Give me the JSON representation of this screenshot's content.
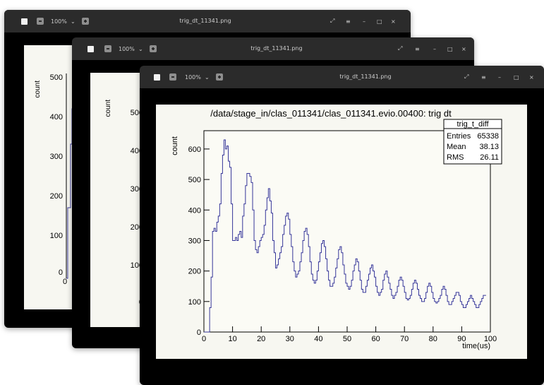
{
  "window": {
    "zoom": "100%",
    "filename": "trig_dt_11341.png",
    "icons": [
      "image-icon",
      "zoom-out-icon",
      "dropdown-chevron-icon",
      "zoom-in-icon",
      "fullscreen-icon",
      "menu-icon",
      "minimize-icon",
      "maximize-icon",
      "close-icon"
    ]
  },
  "chart_data": {
    "type": "histogram",
    "title": "/data/stage_in/clas_011341/clas_011341.evio.00400: trig dt",
    "xlabel": "time(us)",
    "ylabel": "count",
    "xlim": [
      0,
      100
    ],
    "ylim": [
      0,
      660
    ],
    "x_ticks": [
      0,
      10,
      20,
      30,
      40,
      50,
      60,
      70,
      80,
      90,
      100
    ],
    "y_ticks": [
      0,
      100,
      200,
      300,
      400,
      500,
      600
    ],
    "stats": {
      "name": "trig_t_diff",
      "rows": [
        {
          "label": "Entries",
          "value": "65338"
        },
        {
          "label": "Mean",
          "value": "38.13"
        },
        {
          "label": "RMS",
          "value": "26.11"
        }
      ]
    },
    "bin_width": 0.5,
    "values": [
      0,
      0,
      0,
      0,
      80,
      180,
      330,
      340,
      330,
      360,
      380,
      420,
      520,
      580,
      630,
      600,
      610,
      560,
      540,
      420,
      300,
      300,
      310,
      300,
      320,
      330,
      310,
      380,
      420,
      480,
      520,
      520,
      510,
      490,
      400,
      300,
      270,
      260,
      280,
      300,
      310,
      320,
      350,
      400,
      440,
      470,
      430,
      390,
      300,
      260,
      210,
      220,
      240,
      260,
      280,
      320,
      350,
      380,
      390,
      370,
      320,
      280,
      230,
      200,
      180,
      190,
      200,
      230,
      260,
      300,
      330,
      340,
      320,
      280,
      230,
      190,
      170,
      160,
      170,
      200,
      230,
      260,
      290,
      300,
      280,
      240,
      200,
      170,
      150,
      150,
      160,
      180,
      210,
      240,
      270,
      280,
      260,
      220,
      190,
      160,
      150,
      140,
      150,
      170,
      200,
      220,
      240,
      230,
      200,
      170,
      140,
      130,
      130,
      150,
      170,
      190,
      210,
      220,
      200,
      180,
      150,
      130,
      120,
      130,
      140,
      170,
      190,
      200,
      180,
      160,
      140,
      120,
      110,
      120,
      130,
      150,
      170,
      180,
      170,
      150,
      130,
      110,
      105,
      110,
      120,
      140,
      160,
      170,
      160,
      140,
      120,
      110,
      100,
      100,
      110,
      130,
      150,
      160,
      150,
      130,
      110,
      100,
      95,
      100,
      110,
      120,
      140,
      150,
      140,
      120,
      100,
      90,
      90,
      100,
      110,
      120,
      130,
      130,
      120,
      100,
      90,
      80,
      80,
      90,
      100,
      110,
      120,
      110,
      100,
      90,
      80,
      80,
      90,
      100,
      110,
      120,
      120
    ]
  },
  "visible_ticks_back": [
    500,
    400,
    300,
    200,
    100,
    0
  ]
}
